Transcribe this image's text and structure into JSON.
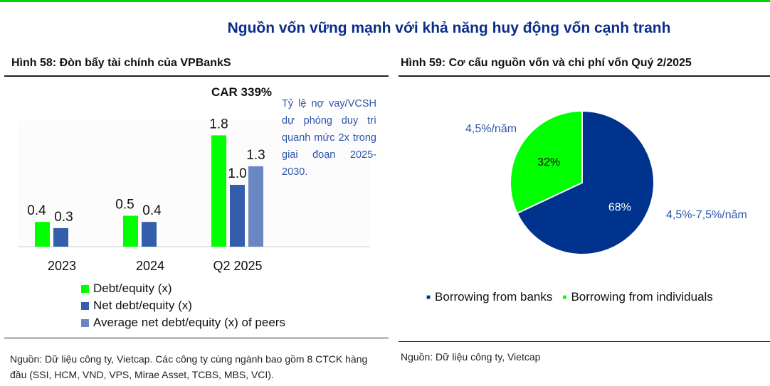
{
  "page_title": "Nguồn vốn vững mạnh với khả năng huy động vốn cạnh tranh",
  "colors": {
    "green": "#00ff00",
    "navy": "#345eab",
    "peer": "#6a87c4",
    "pie_navy": "#00338d",
    "text_blue": "#2c55a8"
  },
  "chart_data": [
    {
      "type": "bar",
      "title": "Hình 58: Đòn bẩy tài chính của VPBankS",
      "categories": [
        "2023",
        "2024",
        "Q2 2025"
      ],
      "series": [
        {
          "name": "Debt/equity (x)",
          "values": [
            0.4,
            0.5,
            1.8
          ]
        },
        {
          "name": "Net debt/equity (x)",
          "values": [
            0.3,
            0.4,
            1.0
          ]
        },
        {
          "name": "Average net debt/equity (x) of peers",
          "values": [
            null,
            null,
            1.3
          ]
        }
      ],
      "value_labels": [
        [
          "0.4",
          "0.5",
          "1.8"
        ],
        [
          "0.3",
          "0.4",
          "1.0"
        ],
        [
          null,
          null,
          "1.3"
        ]
      ],
      "annotation": "CAR 339%",
      "note": "Tỷ lệ nợ vay/VCSH dự phóng duy trì quanh mức 2x trong giai đoạn 2025-2030.",
      "legend_position": "bottom",
      "source": "Nguồn: Dữ liệu công ty, Vietcap. Các công ty cùng ngành bao gồm 8 CTCK hàng đầu (SSI, HCM, VND, VPS, Mirae Asset, TCBS, MBS, VCI)."
    },
    {
      "type": "pie",
      "title": "Hình 59: Cơ cấu nguồn vốn và chi phí vốn Quý 2/2025",
      "slices": [
        {
          "name": "Borrowing from banks",
          "value": 68,
          "label": "68%",
          "cost": "4,5%-7,5%/năm"
        },
        {
          "name": "Borrowing from individuals",
          "value": 32,
          "label": "32%",
          "cost": "4,5%/năm"
        }
      ],
      "legend_position": "bottom",
      "source": "Nguồn: Dữ liệu công ty, Vietcap"
    }
  ]
}
